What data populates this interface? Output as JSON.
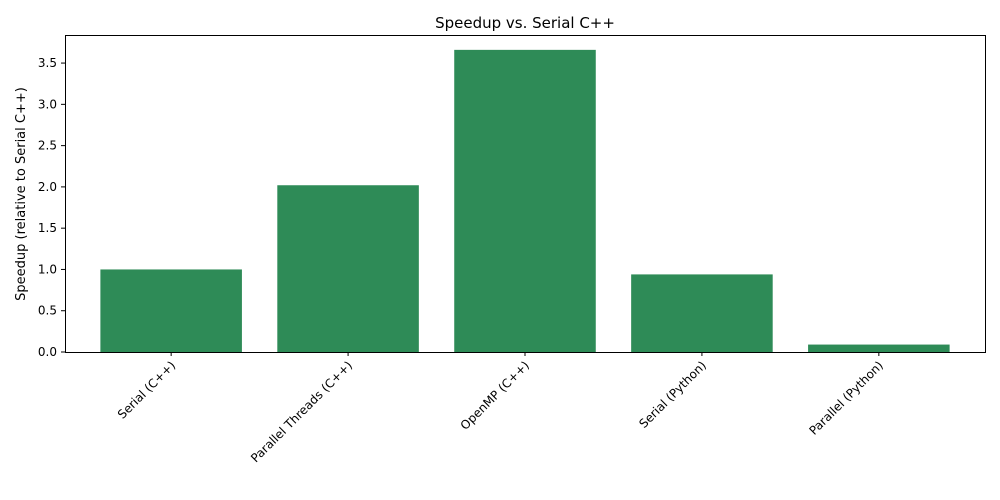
{
  "chart_data": {
    "type": "bar",
    "title": "Speedup vs. Serial C++",
    "xlabel": "",
    "ylabel": "Speedup (relative to Serial C++)",
    "categories": [
      "Serial (C++)",
      "Parallel Threads (C++)",
      "OpenMP (C++)",
      "Serial (Python)",
      "Parallel (Python)"
    ],
    "values": [
      1.0,
      2.02,
      3.66,
      0.94,
      0.09
    ],
    "ylim": [
      0,
      3.84
    ],
    "yticks": [
      0.0,
      0.5,
      1.0,
      1.5,
      2.0,
      2.5,
      3.0,
      3.5
    ],
    "ytick_labels": [
      "0.0",
      "0.5",
      "1.0",
      "1.5",
      "2.0",
      "2.5",
      "3.0",
      "3.5"
    ],
    "grid": false,
    "colors": {
      "bar": "#2e8b57",
      "axis": "#000000"
    }
  }
}
